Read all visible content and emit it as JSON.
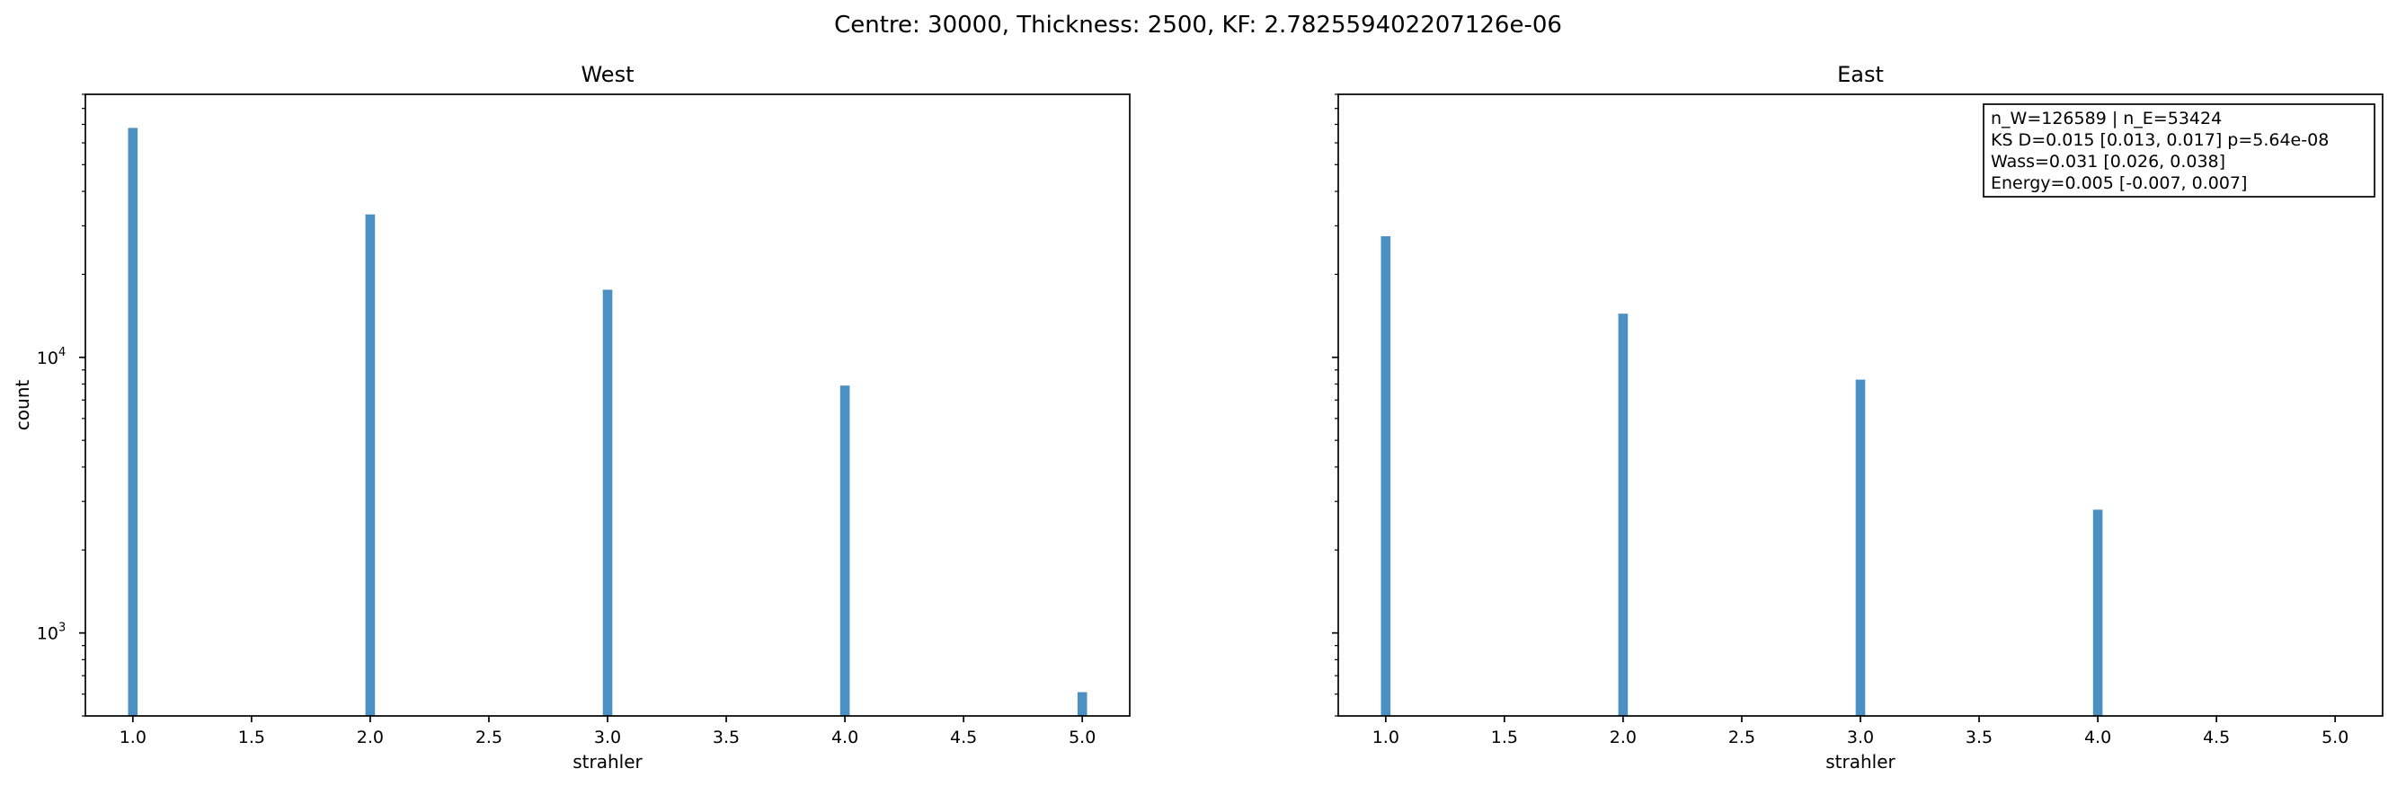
{
  "figure_title": "Centre: 30000, Thickness: 2500, KF: 2.782559402207126e-06",
  "chart_data": [
    {
      "type": "bar",
      "title": "West",
      "xlabel": "strahler",
      "ylabel": "count",
      "yscale": "log",
      "xlim": [
        0.8,
        5.2
      ],
      "ylim": [
        500,
        90000
      ],
      "bar_width": 0.08,
      "color": "#4a90c2",
      "x": [
        1.0,
        2.0,
        3.0,
        4.0,
        5.0
      ],
      "values": [
        68000,
        33000,
        17600,
        7900,
        610
      ],
      "x_ticks": [
        "1.0",
        "1.5",
        "2.0",
        "2.5",
        "3.0",
        "3.5",
        "4.0",
        "4.5",
        "5.0"
      ],
      "y_tick_labels": [
        {
          "base": "10",
          "exp": "3",
          "value": 1000
        },
        {
          "base": "10",
          "exp": "4",
          "value": 10000
        }
      ],
      "grid": false
    },
    {
      "type": "bar",
      "title": "East",
      "xlabel": "strahler",
      "ylabel": "",
      "yscale": "log",
      "xlim": [
        0.8,
        5.2
      ],
      "ylim": [
        500,
        90000
      ],
      "bar_width": 0.08,
      "color": "#4a90c2",
      "x": [
        1.0,
        2.0,
        3.0,
        4.0
      ],
      "values": [
        27500,
        14400,
        8300,
        2800
      ],
      "x_ticks": [
        "1.0",
        "1.5",
        "2.0",
        "2.5",
        "3.0",
        "3.5",
        "4.0",
        "4.5",
        "5.0"
      ],
      "grid": false,
      "annotation": {
        "placement": "top-right",
        "lines": [
          "n_W=126589 | n_E=53424",
          "KS D=0.015 [0.013, 0.017]  p=5.64e-08",
          "Wass=0.031 [0.026, 0.038]",
          "Energy=0.005 [-0.007, 0.007]"
        ]
      }
    }
  ]
}
